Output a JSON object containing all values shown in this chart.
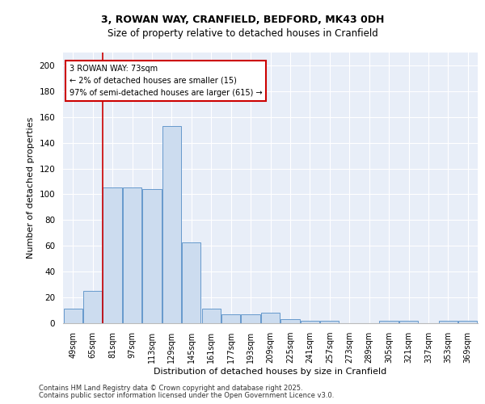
{
  "title1": "3, ROWAN WAY, CRANFIELD, BEDFORD, MK43 0DH",
  "title2": "Size of property relative to detached houses in Cranfield",
  "xlabel": "Distribution of detached houses by size in Cranfield",
  "ylabel": "Number of detached properties",
  "categories": [
    "49sqm",
    "65sqm",
    "81sqm",
    "97sqm",
    "113sqm",
    "129sqm",
    "145sqm",
    "161sqm",
    "177sqm",
    "193sqm",
    "209sqm",
    "225sqm",
    "241sqm",
    "257sqm",
    "273sqm",
    "289sqm",
    "305sqm",
    "321sqm",
    "337sqm",
    "353sqm",
    "369sqm"
  ],
  "values": [
    11,
    25,
    105,
    105,
    104,
    153,
    63,
    11,
    7,
    7,
    8,
    3,
    2,
    2,
    0,
    0,
    2,
    2,
    0,
    2,
    2
  ],
  "bar_color": "#ccdcef",
  "bar_edge_color": "#6699cc",
  "bg_color": "#e8eef8",
  "grid_color": "#ffffff",
  "red_line_x": 1.5,
  "annotation_title": "3 ROWAN WAY: 73sqm",
  "annotation_line1": "← 2% of detached houses are smaller (15)",
  "annotation_line2": "97% of semi-detached houses are larger (615) →",
  "ylim": [
    0,
    210
  ],
  "yticks": [
    0,
    20,
    40,
    60,
    80,
    100,
    120,
    140,
    160,
    180,
    200
  ],
  "footer1": "Contains HM Land Registry data © Crown copyright and database right 2025.",
  "footer2": "Contains public sector information licensed under the Open Government Licence v3.0."
}
